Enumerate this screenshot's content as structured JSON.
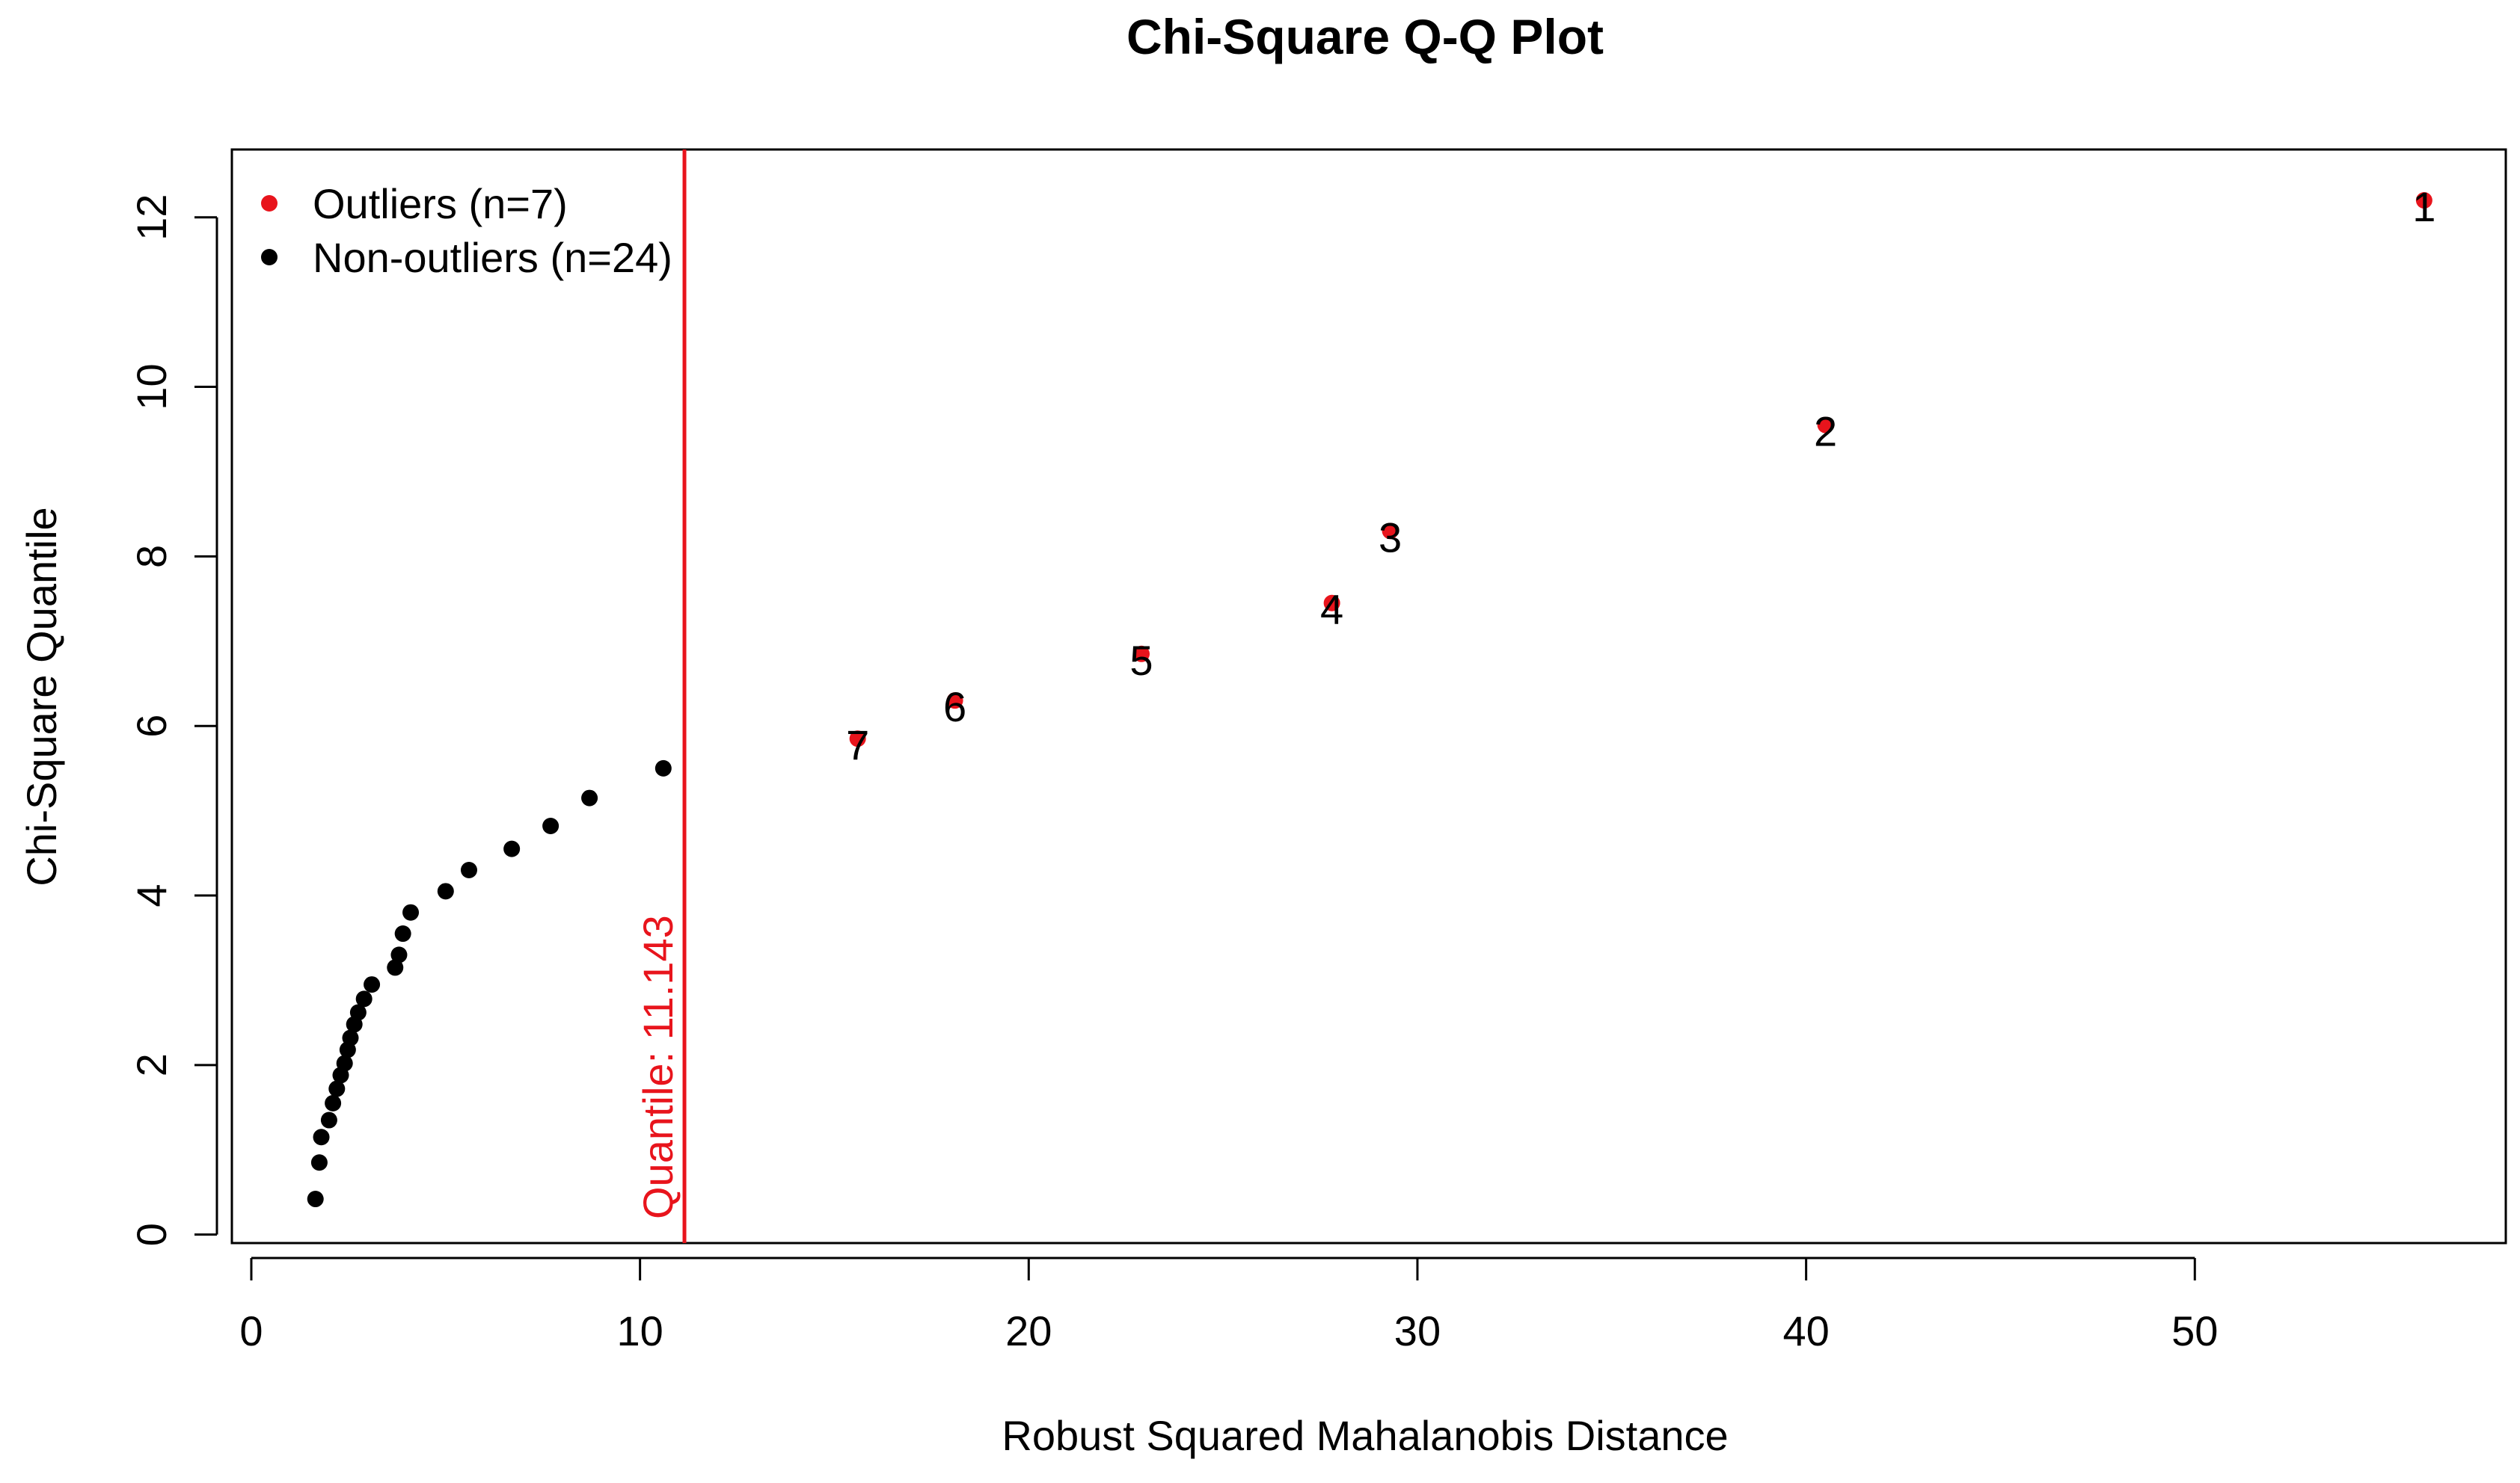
{
  "chart_data": {
    "type": "scatter",
    "title": "Chi-Square Q-Q Plot",
    "xlabel": "Robust Squared Mahalanobis Distance",
    "ylabel": "Chi-Square Quantile",
    "xlim": [
      -0.5,
      58
    ],
    "ylim": [
      -0.1,
      12.8
    ],
    "x_ticks": [
      0,
      10,
      20,
      30,
      40,
      50
    ],
    "y_ticks": [
      0,
      2,
      4,
      6,
      8,
      10,
      12
    ],
    "grid": false,
    "legend": {
      "position": "top-left",
      "entries": [
        {
          "label": "Outliers (n=7)",
          "color": "#e8141c"
        },
        {
          "label": "Non-outliers (n=24)",
          "color": "#000000"
        }
      ]
    },
    "cutoff": {
      "x": 11.143,
      "label": "Quantile:  11.143",
      "color": "#e8141c"
    },
    "series": [
      {
        "name": "Outliers (n=7)",
        "color": "#e8141c",
        "points": [
          {
            "x": 55.9,
            "y": 12.2,
            "label": "1"
          },
          {
            "x": 40.5,
            "y": 9.55,
            "label": "2"
          },
          {
            "x": 29.3,
            "y": 8.3,
            "label": "3"
          },
          {
            "x": 27.8,
            "y": 7.45,
            "label": "4"
          },
          {
            "x": 22.9,
            "y": 6.85,
            "label": "5"
          },
          {
            "x": 18.1,
            "y": 6.3,
            "label": "6"
          },
          {
            "x": 15.6,
            "y": 5.85,
            "label": "7"
          }
        ]
      },
      {
        "name": "Non-outliers (n=24)",
        "color": "#000000",
        "points": [
          {
            "x": 1.65,
            "y": 0.42
          },
          {
            "x": 1.75,
            "y": 0.85
          },
          {
            "x": 1.8,
            "y": 1.15
          },
          {
            "x": 2.0,
            "y": 1.35
          },
          {
            "x": 2.1,
            "y": 1.55
          },
          {
            "x": 2.2,
            "y": 1.72
          },
          {
            "x": 2.3,
            "y": 1.88
          },
          {
            "x": 2.4,
            "y": 2.02
          },
          {
            "x": 2.48,
            "y": 2.18
          },
          {
            "x": 2.55,
            "y": 2.32
          },
          {
            "x": 2.65,
            "y": 2.48
          },
          {
            "x": 2.75,
            "y": 2.62
          },
          {
            "x": 2.9,
            "y": 2.78
          },
          {
            "x": 3.1,
            "y": 2.95
          },
          {
            "x": 3.7,
            "y": 3.15
          },
          {
            "x": 3.8,
            "y": 3.3
          },
          {
            "x": 3.9,
            "y": 3.55
          },
          {
            "x": 4.1,
            "y": 3.8
          },
          {
            "x": 5.0,
            "y": 4.05
          },
          {
            "x": 5.6,
            "y": 4.3
          },
          {
            "x": 6.7,
            "y": 4.55
          },
          {
            "x": 7.7,
            "y": 4.82
          },
          {
            "x": 8.7,
            "y": 5.15
          },
          {
            "x": 10.6,
            "y": 5.5
          }
        ]
      }
    ]
  }
}
